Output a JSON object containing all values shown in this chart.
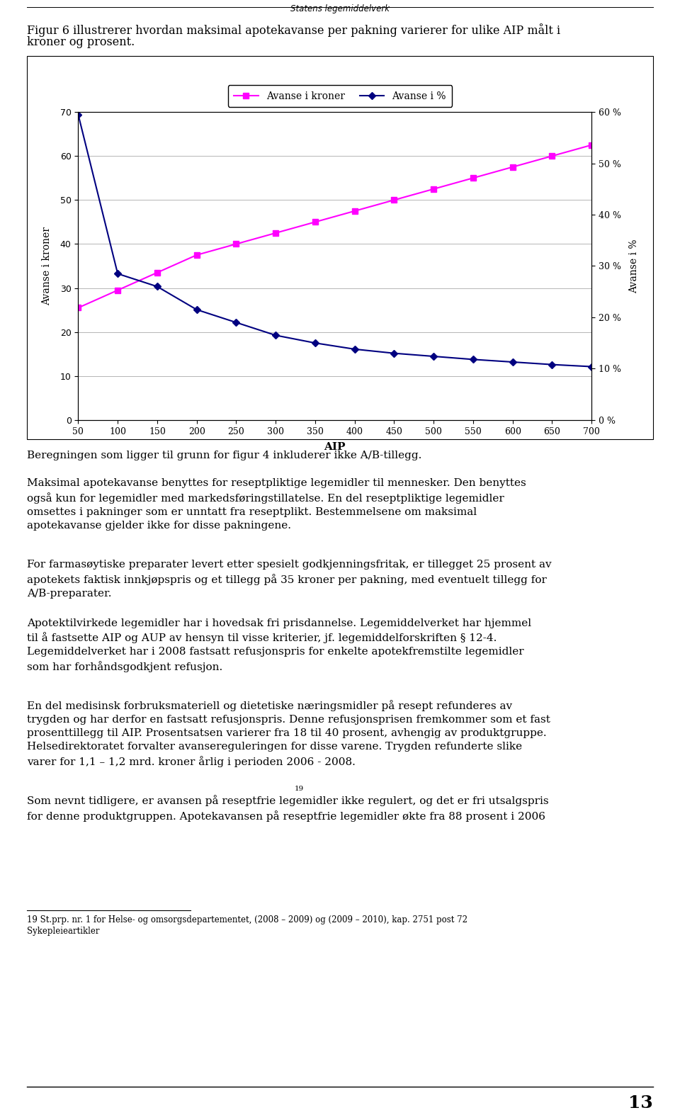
{
  "header": "Statens legemiddelverk",
  "intro_text_line1": "Figur 6 illustrerer hvordan maksimal apotekavanse per pakning varierer for ulike AIP målt i",
  "intro_text_line2": "kroner og prosent.",
  "legend_label1": "Avanse i kroner",
  "legend_label2": "Avanse i %",
  "xlabel": "AIP",
  "ylabel_left": "Avanse i kroner",
  "ylabel_right": "Avanse i %",
  "aip_values": [
    50,
    100,
    150,
    200,
    250,
    300,
    350,
    400,
    450,
    500,
    550,
    600,
    650,
    700
  ],
  "avanse_kroner": [
    25.5,
    29.5,
    33.5,
    37.5,
    40.0,
    42.5,
    45.0,
    47.5,
    50.0,
    52.5,
    55.0,
    57.5,
    60.0,
    62.5
  ],
  "avanse_pct": [
    59.5,
    28.5,
    26.0,
    21.5,
    19.0,
    16.5,
    15.0,
    13.8,
    13.0,
    12.4,
    11.8,
    11.3,
    10.8,
    10.4
  ],
  "ylim_left": [
    0,
    70
  ],
  "ylim_right": [
    0,
    0.6
  ],
  "yticks_left": [
    0,
    10,
    20,
    30,
    40,
    50,
    60,
    70
  ],
  "yticks_right": [
    0.0,
    0.1,
    0.2,
    0.3,
    0.4,
    0.5,
    0.6
  ],
  "ytick_labels_right": [
    "0 %",
    "10 %",
    "20 %",
    "30 %",
    "40 %",
    "50 %",
    "60 %"
  ],
  "color_kroner": "#FF00FF",
  "color_pct": "#000080",
  "body_text0": "Beregningen som ligger til grunn for figur 4 inkluderer ikke A/B-tillegg.",
  "body_text1": "Maksimal apotekavanse benyttes for reseptpliktige legemidler til mennesker. Den benyttes\nogså kun for legemidler med markedsføringstillatelse. En del reseptpliktige legemidler\nomsettes i pakninger som er unntatt fra reseptplikt. Bestemmelsene om maksimal\napotekavanse gjelder ikke for disse pakningene.",
  "body_text2": "For farmasøytiske preparater levert etter spesielt godkjenningsfritak, er tillegget 25 prosent av\napotekets faktisk innkjøpspris og et tillegg på 35 kroner per pakning, med eventuelt tillegg for\nA/B-preparater.",
  "body_text3": "Apotektilvirkede legemidler har i hovedsak fri prisdannelse. Legemiddelverket har hjemmel\ntil å fastsette AIP og AUP av hensyn til visse kriterier, jf. legemiddelforskriften § 12-4.\nLegemiddelverket har i 2008 fastsatt refusjonspris for enkelte apotekfremstilte legemidler\nsom har forhåndsgodkjent refusjon.",
  "body_text4a": "En del medisinsk forbruksmateriell og dietetiske næringsmidler på resept refunderes av\ntrygden og har derfor en fastsatt refusjonspris. Denne refusjonsprisen fremkommer som et fast\nprosenttillegg til AIP. Prosentsatsen varierer fra 18 til 40 prosent, avhengig av produktgruppe.\nHelsedirektoratet forvalter avansereguleringen for disse varene. Trygden refunderte slike\nvarer for 1,1 – 1,2 mrd. kroner årlig i perioden 2006 - 2008.",
  "body_text4_superscript": "19",
  "body_text5": "Som nevnt tidligere, er avansen på reseptfrie legemidler ikke regulert, og det er fri utsalgspris\nfor denne produktgruppen. Apotekavansen på reseptfrie legemidler økte fra 88 prosent i 2006",
  "footnote_marker": "19",
  "footnote_text": " St.prp. nr. 1 for Helse- og omsorgsdepartementet, (2008 – 2009) og (2009 – 2010), kap. 2751 post 72\nSykepleieartikler",
  "page_number": "13"
}
